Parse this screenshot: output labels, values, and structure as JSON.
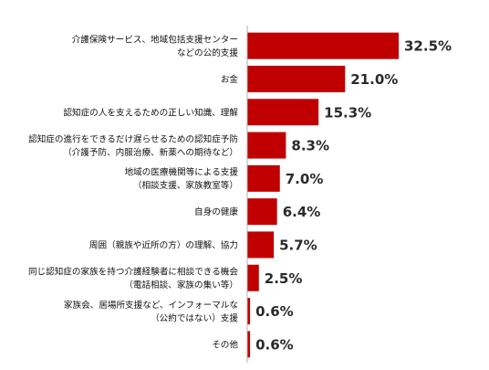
{
  "chart_data": {
    "type": "bar",
    "orientation": "horizontal",
    "title": "",
    "xlabel": "",
    "ylabel": "",
    "value_suffix": "%",
    "grid": false,
    "legend": "none",
    "bar_color": "#c00000",
    "axis_color": "#b0b0b0",
    "categories": [
      [
        "介護保険サービス、地域包括支援センター",
        "などの公的支援"
      ],
      [
        "お金"
      ],
      [
        "認知症の人を支えるための正しい知識、理解"
      ],
      [
        "認知症の進行をできるだけ遅らせるための認知症予防",
        "（介護予防、内服治療、新薬への期待など）"
      ],
      [
        "地域の医療機関等による支援",
        "（相談支援、家族教室等）"
      ],
      [
        "自身の健康"
      ],
      [
        "周囲（親族や近所の方）の理解、協力"
      ],
      [
        "同じ認知症の家族を持つ介護経験者に相談できる機会",
        "（電話相談、家族の集い等）"
      ],
      [
        "家族会、居場所支援など、インフォーマルな",
        "（公約ではない）支援"
      ],
      [
        "その他"
      ]
    ],
    "values": [
      32.5,
      21.0,
      15.3,
      8.3,
      7.0,
      6.4,
      5.7,
      2.5,
      0.6,
      0.6
    ],
    "value_labels": [
      "32.5%",
      "21.0%",
      "15.3%",
      "8.3%",
      "7.0%",
      "6.4%",
      "5.7%",
      "2.5%",
      "0.6%",
      "0.6%"
    ],
    "xlim": [
      0,
      32.5
    ]
  }
}
